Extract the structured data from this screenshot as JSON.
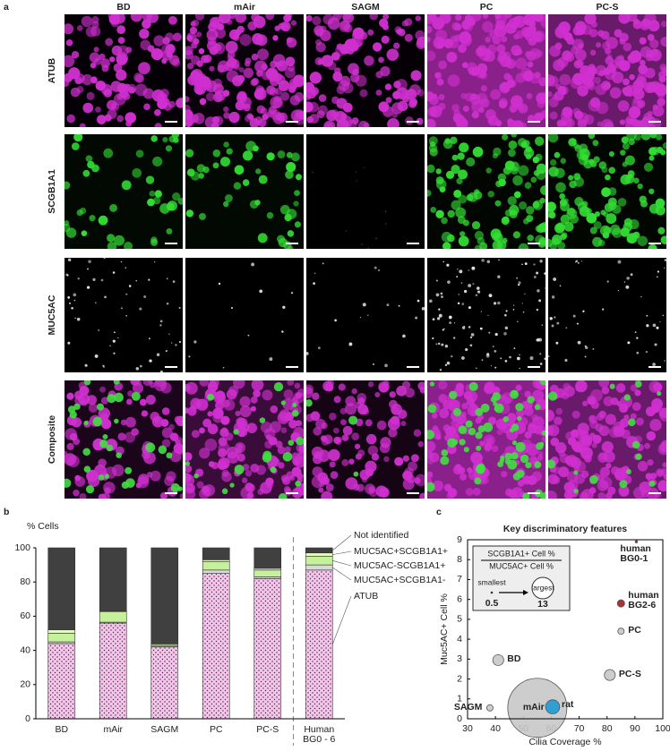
{
  "figure": {
    "panel_labels": [
      "a",
      "b",
      "c"
    ],
    "columns": [
      "BD",
      "mAir",
      "SAGM",
      "PC",
      "PC-S"
    ],
    "rows": [
      "ATUB",
      "SCGB1A1",
      "MUC5AC",
      "Composite"
    ]
  },
  "chart_data": [
    {
      "type": "bar",
      "stacked": true,
      "ylabel": "% Cells",
      "categories": [
        "BD",
        "mAir",
        "SAGM",
        "PC",
        "PC-S",
        "Human BG0 - 6"
      ],
      "ylim": [
        0,
        100
      ],
      "yticks": [
        0,
        20,
        40,
        60,
        80,
        100
      ],
      "series": [
        {
          "name": "ATUB",
          "color": "#f6c4ec",
          "pattern": "dots",
          "values": [
            44,
            56,
            42,
            85,
            82,
            87
          ]
        },
        {
          "name": "MUC5AC+SCGB1A1-",
          "color": "#d9d9d9",
          "values": [
            1,
            0.5,
            0.5,
            2,
            1,
            3
          ]
        },
        {
          "name": "MUC5AC-SCGB1A1+",
          "color": "#c6f09c",
          "values": [
            5,
            6,
            1,
            5,
            4,
            5
          ]
        },
        {
          "name": "MUC5AC+SCGB1A1+",
          "color": "#e6f7c8",
          "values": [
            2,
            0.5,
            0.5,
            1,
            1,
            2
          ]
        },
        {
          "name": "Not identified",
          "color": "#404040",
          "values": [
            48,
            37,
            56,
            7,
            12,
            3
          ]
        }
      ]
    },
    {
      "type": "bubble",
      "title": "Key discriminatory features",
      "xlabel": "Cilia Coverage %",
      "ylabel": "Muc5AC+ Cell %",
      "xlim": [
        30,
        100
      ],
      "xticks": [
        30,
        40,
        50,
        60,
        70,
        80,
        90,
        100
      ],
      "ylim": [
        0,
        9
      ],
      "yticks": [
        0,
        1,
        2,
        3,
        4,
        5,
        6,
        7,
        8,
        9
      ],
      "points": [
        {
          "label": "human BG0-1",
          "x": 90.5,
          "y": 8.9,
          "size": 0.5,
          "color": "#8b1a1a"
        },
        {
          "label": "human BG2-6",
          "x": 85,
          "y": 5.8,
          "size": 1.6,
          "color": "#a01c1c"
        },
        {
          "label": "PC",
          "x": 85,
          "y": 4.4,
          "size": 1.4,
          "color": "#c8c8c8"
        },
        {
          "label": "BD",
          "x": 41,
          "y": 2.95,
          "size": 2.4,
          "color": "#c8c8c8"
        },
        {
          "label": "PC-S",
          "x": 81,
          "y": 2.2,
          "size": 2.4,
          "color": "#c8c8c8"
        },
        {
          "label": "SAGM",
          "x": 38,
          "y": 0.55,
          "size": 1.4,
          "color": "#c8c8c8"
        },
        {
          "label": "mAir",
          "x": 55,
          "y": 0.55,
          "size": 13,
          "color": "#c8c8c8"
        },
        {
          "label": "rat",
          "x": 60.5,
          "y": 0.6,
          "size": 3.1,
          "color": "#1e9ad6"
        }
      ],
      "size_legend": {
        "numerator": "SCGB1A1+ Cell %",
        "denominator": "MUC5AC+ Cell %",
        "min_label": "smallest",
        "max_label": "largest",
        "min": 0.5,
        "max": 13
      }
    }
  ]
}
